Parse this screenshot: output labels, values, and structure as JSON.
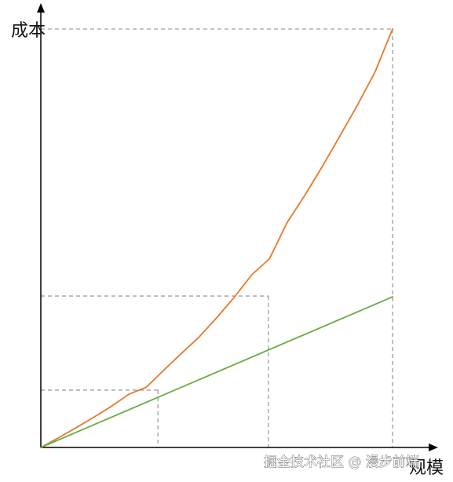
{
  "chart_data": {
    "type": "line",
    "ylabel": "成本",
    "xlabel": "规模",
    "xlim": [
      0,
      100
    ],
    "ylim": [
      0,
      100
    ],
    "grid": false,
    "tick_labels": false,
    "series": [
      {
        "key": "orange",
        "color": "#e8782a",
        "x": [
          0,
          5,
          10,
          15,
          20,
          25,
          30,
          35,
          40,
          45,
          50,
          55,
          60,
          65,
          70,
          75,
          80,
          85,
          90,
          95,
          100
        ],
        "y": [
          0,
          2.3,
          4.7,
          7.2,
          9.8,
          12.7,
          14.4,
          18.5,
          22.5,
          26.4,
          31,
          35.9,
          41.3,
          45.1,
          53.7,
          60.2,
          67.1,
          74.4,
          81.8,
          89.7,
          100
        ]
      },
      {
        "key": "green",
        "color": "#6aab44",
        "x": [
          0,
          100
        ],
        "y": [
          0,
          36
        ]
      }
    ],
    "reference_points": [
      {
        "x": 33.3,
        "y": 13.7
      },
      {
        "x": 64.7,
        "y": 36.2
      },
      {
        "x": 100,
        "y": 100
      }
    ]
  },
  "watermark": "掘金技术社区 @ 漫步前端"
}
